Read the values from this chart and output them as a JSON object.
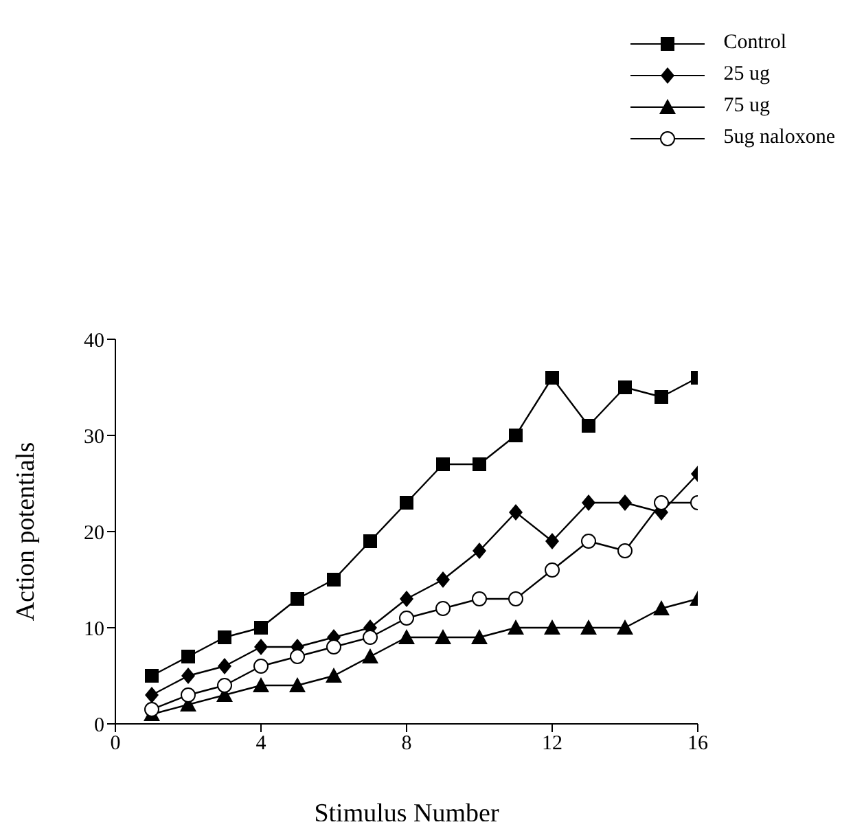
{
  "chart_data": {
    "type": "line",
    "xlabel": "Stimulus Number",
    "ylabel": "Action potentials",
    "x": [
      1,
      2,
      3,
      4,
      5,
      6,
      7,
      8,
      9,
      10,
      11,
      12,
      13,
      14,
      15,
      16
    ],
    "xlim": [
      0,
      16
    ],
    "xticks": [
      0,
      4,
      8,
      12,
      16
    ],
    "ylim": [
      0,
      40
    ],
    "yticks": [
      0,
      10,
      20,
      30,
      40
    ],
    "grid": false,
    "legend": "top right",
    "line_style": "solid",
    "series": [
      {
        "name": "Control",
        "color": "#000000",
        "marker": "square",
        "values": [
          5,
          7,
          9,
          10,
          13,
          15,
          19,
          23,
          27,
          27,
          30,
          36,
          31,
          35,
          34,
          36
        ]
      },
      {
        "name": "25 ug",
        "color": "#000000",
        "marker": "diamond",
        "values": [
          3,
          5,
          6,
          8,
          8,
          9,
          10,
          13,
          15,
          18,
          22,
          19,
          23,
          23,
          22,
          26
        ]
      },
      {
        "name": "75 ug",
        "color": "#000000",
        "marker": "triangle",
        "values": [
          1,
          2,
          3,
          4,
          4,
          5,
          7,
          9,
          9,
          9,
          10,
          10,
          10,
          10,
          12,
          13
        ]
      },
      {
        "name": "5ug naloxone",
        "color": "#000000",
        "marker": "circle",
        "values": [
          1.5,
          3,
          4,
          6,
          7,
          8,
          9,
          11,
          12,
          13,
          13,
          16,
          19,
          18,
          23,
          23
        ]
      }
    ]
  }
}
